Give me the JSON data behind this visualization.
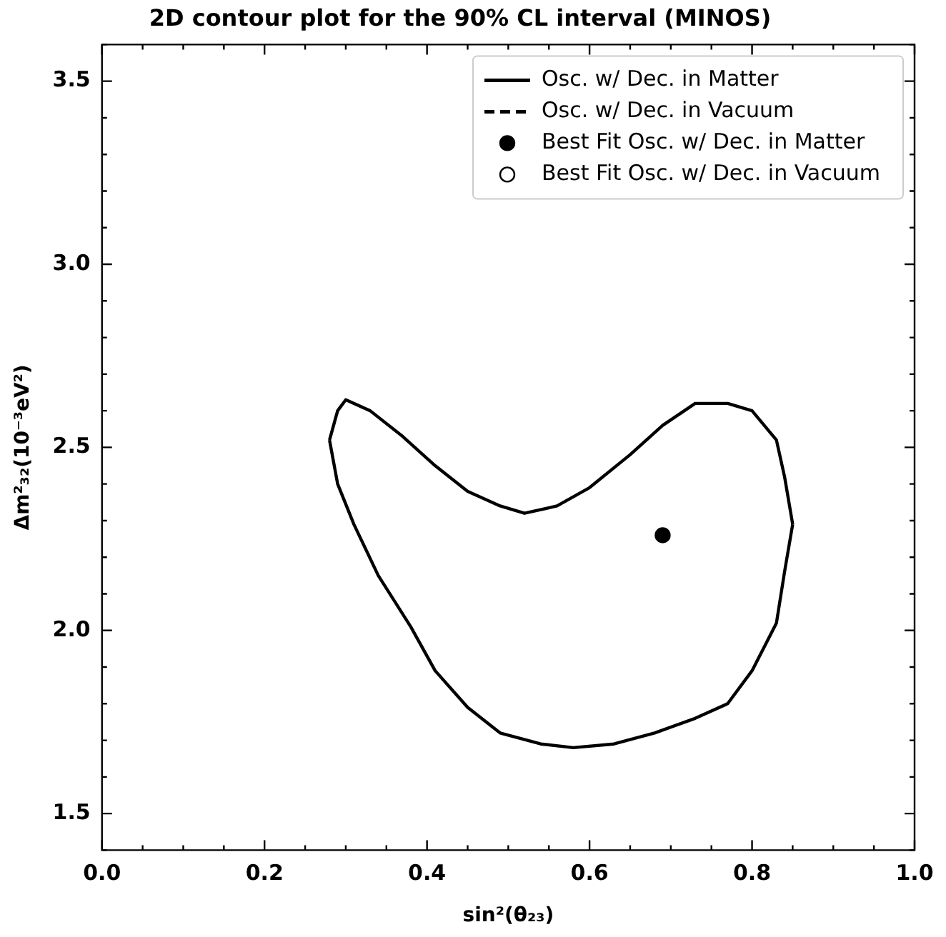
{
  "chart_data": {
    "type": "line",
    "title": "2D contour plot for the 90% CL interval (MINOS)",
    "xlabel": "sin²(θ₂₃)",
    "ylabel": "Δm²₃₂(10⁻³eV²)",
    "xlim": [
      0,
      1
    ],
    "ylim": [
      1.4,
      3.6
    ],
    "xticks": [
      {
        "value": 0,
        "label": "0.0"
      },
      0.2,
      0.4,
      0.6,
      0.8,
      {
        "value": 1,
        "label": "1.0"
      }
    ],
    "yticks": [
      1.5,
      {
        "value": 2,
        "label": "2.0"
      },
      2.5,
      {
        "value": 3,
        "label": "3.0"
      },
      3.5
    ],
    "grid": false,
    "legend": "top right",
    "series": [
      {
        "type": "line",
        "name": "Osc. w/ Dec. in Matter",
        "color": "#000000",
        "line_style": "solid",
        "x": [
          0.28,
          0.29,
          0.3,
          0.33,
          0.37,
          0.41,
          0.45,
          0.49,
          0.52,
          0.56,
          0.6,
          0.65,
          0.69,
          0.73,
          0.77,
          0.8,
          0.83,
          0.84,
          0.85,
          null,
          0.28,
          0.29,
          0.31,
          0.34,
          0.38,
          0.41,
          0.45,
          0.49,
          0.54,
          0.58,
          0.63,
          0.68,
          0.73,
          0.77,
          0.8,
          0.83,
          0.84,
          0.85
        ],
        "values": [
          2.52,
          2.6,
          2.63,
          2.6,
          2.53,
          2.45,
          2.38,
          2.34,
          2.32,
          2.34,
          2.39,
          2.48,
          2.56,
          2.62,
          2.62,
          2.6,
          2.52,
          2.42,
          2.29,
          null,
          2.52,
          2.4,
          2.29,
          2.15,
          2.01,
          1.89,
          1.79,
          1.72,
          1.69,
          1.68,
          1.69,
          1.72,
          1.76,
          1.8,
          1.89,
          2.02,
          2.16,
          2.29
        ]
      },
      {
        "type": "line",
        "name": "Osc. w/ Dec. in Vacuum",
        "color": "#000000",
        "line_style": "dashed",
        "x": [
          null
        ],
        "values": [
          null
        ]
      },
      {
        "type": "scatter",
        "name": "Best Fit Osc. w/ Dec. in Matter",
        "color": "#000000",
        "marker": "circle",
        "x": [
          0.69
        ],
        "values": [
          2.26
        ]
      },
      {
        "type": "scatter",
        "name": "Best Fit Osc. w/ Dec. in Vacuum",
        "color": "#ffffff",
        "marker": "circle",
        "x": [
          null
        ],
        "values": [
          null
        ]
      }
    ]
  }
}
